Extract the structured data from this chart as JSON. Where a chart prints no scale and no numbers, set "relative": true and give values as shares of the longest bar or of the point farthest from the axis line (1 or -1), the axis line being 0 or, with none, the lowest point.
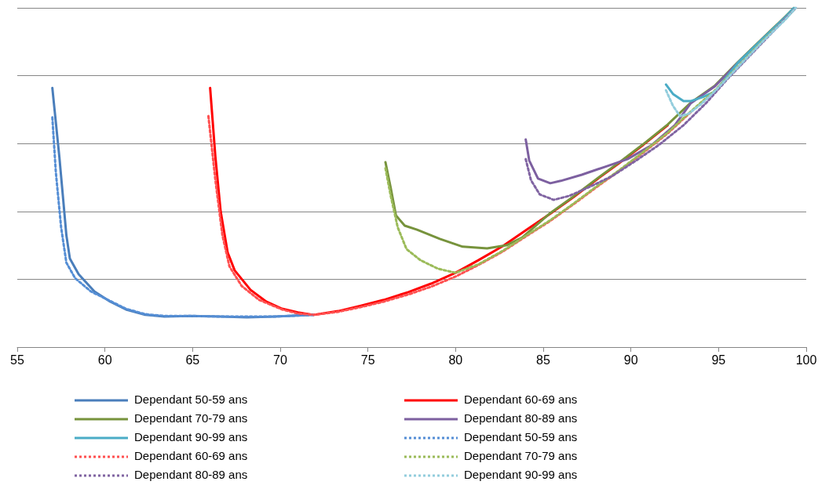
{
  "chart_data": {
    "type": "line",
    "relative": true,
    "xlim": [
      55,
      100
    ],
    "xticks": [
      55,
      60,
      65,
      70,
      75,
      80,
      85,
      90,
      95,
      100
    ],
    "grid": "y",
    "legend": "bottom",
    "marker": "none",
    "series": [
      {
        "name": "Dependant 50-59 ans",
        "color": "#4a7ebb",
        "line_style": "solid",
        "x": [
          57.0,
          57.4,
          57.6,
          57.8,
          58.0,
          58.5,
          59.4,
          60.3,
          61.2,
          62.3,
          63.4,
          64.8,
          66.6,
          68.1,
          69.7,
          71.9
        ],
        "values": [
          0.764,
          0.561,
          0.446,
          0.33,
          0.261,
          0.215,
          0.164,
          0.134,
          0.111,
          0.095,
          0.09,
          0.092,
          0.09,
          0.088,
          0.09,
          0.095
        ]
      },
      {
        "name": "Dependant 60-69 ans",
        "color": "#ff0000",
        "line_style": "solid",
        "x": [
          66.0,
          66.3,
          66.6,
          67.0,
          67.4,
          68.3,
          69.2,
          70.1,
          71.0,
          71.9,
          73.3,
          74.6,
          75.9,
          77.3,
          78.6,
          80.0,
          81.3,
          82.7,
          84.0,
          85.4,
          86.7,
          88.0,
          89.4,
          90.7,
          92.1
        ],
        "values": [
          0.764,
          0.561,
          0.4,
          0.279,
          0.226,
          0.169,
          0.134,
          0.113,
          0.102,
          0.095,
          0.106,
          0.122,
          0.139,
          0.162,
          0.187,
          0.219,
          0.256,
          0.298,
          0.344,
          0.393,
          0.441,
          0.492,
          0.545,
          0.596,
          0.654
        ]
      },
      {
        "name": "Dependant 70-79 ans",
        "color": "#77933c",
        "line_style": "solid",
        "x": [
          76.0,
          76.3,
          76.6,
          77.1,
          77.8,
          79.1,
          80.4,
          81.8,
          82.9,
          83.8,
          85.4,
          86.7,
          88.0,
          89.4,
          90.7,
          92.1,
          93.4,
          94.8,
          96.1,
          97.5,
          98.8,
          99.3
        ],
        "values": [
          0.545,
          0.469,
          0.388,
          0.358,
          0.346,
          0.319,
          0.296,
          0.291,
          0.3,
          0.323,
          0.395,
          0.443,
          0.494,
          0.547,
          0.598,
          0.656,
          0.72,
          0.771,
          0.84,
          0.91,
          0.974,
          1.0
        ]
      },
      {
        "name": "Dependant 80-89 ans",
        "color": "#7d60a0",
        "line_style": "solid",
        "x": [
          84.0,
          84.2,
          84.7,
          85.4,
          86.0,
          87.2,
          88.5,
          89.8,
          91.2,
          92.5,
          93.4,
          94.8,
          96.1,
          97.5,
          98.8,
          99.4
        ],
        "values": [
          0.612,
          0.55,
          0.497,
          0.483,
          0.49,
          0.508,
          0.531,
          0.554,
          0.596,
          0.654,
          0.718,
          0.769,
          0.838,
          0.908,
          0.972,
          1.0
        ]
      },
      {
        "name": "Dependant 90-99 ans",
        "color": "#4bacc6",
        "line_style": "solid",
        "x": [
          92.0,
          92.4,
          93.0,
          93.4,
          94.1,
          94.8,
          96.1,
          97.5,
          98.8,
          99.3
        ],
        "values": [
          0.774,
          0.746,
          0.725,
          0.725,
          0.737,
          0.753,
          0.838,
          0.908,
          0.972,
          1.0
        ]
      },
      {
        "name": "Dependant 50-59 ans",
        "color": "#558ed5",
        "line_style": "dotted",
        "x": [
          57.0,
          57.2,
          57.5,
          57.8,
          58.3,
          59.2,
          60.3,
          61.2,
          62.3,
          63.4,
          64.8,
          66.6,
          68.1,
          69.7,
          71.9
        ],
        "values": [
          0.677,
          0.515,
          0.353,
          0.249,
          0.203,
          0.164,
          0.136,
          0.113,
          0.097,
          0.092,
          0.092,
          0.09,
          0.09,
          0.09,
          0.095
        ]
      },
      {
        "name": "Dependant 60-69 ans",
        "color": "#ff5050",
        "line_style": "dotted",
        "x": [
          65.9,
          66.3,
          66.7,
          67.1,
          67.8,
          68.8,
          70.1,
          71.0,
          71.9,
          73.3,
          74.6,
          75.9,
          77.3,
          78.6,
          80.0,
          81.3,
          82.7,
          84.0,
          85.4,
          86.7,
          88.0,
          89.4,
          90.7,
          92.1,
          93.4
        ],
        "values": [
          0.681,
          0.492,
          0.33,
          0.238,
          0.18,
          0.139,
          0.111,
          0.099,
          0.095,
          0.104,
          0.118,
          0.134,
          0.155,
          0.178,
          0.208,
          0.242,
          0.282,
          0.326,
          0.372,
          0.42,
          0.47,
          0.522,
          0.573,
          0.63,
          0.692
        ]
      },
      {
        "name": "Dependant 70-79 ans",
        "color": "#9bbb59",
        "line_style": "dotted",
        "x": [
          76.0,
          76.3,
          76.7,
          77.2,
          78.0,
          79.0,
          80.0,
          81.3,
          82.7,
          84.0,
          85.4,
          86.7,
          88.0,
          89.4,
          90.7,
          92.1,
          93.4,
          94.8,
          96.1,
          97.5,
          98.8,
          99.4
        ],
        "values": [
          0.527,
          0.446,
          0.353,
          0.289,
          0.256,
          0.231,
          0.219,
          0.244,
          0.284,
          0.328,
          0.374,
          0.422,
          0.472,
          0.524,
          0.575,
          0.632,
          0.694,
          0.757,
          0.827,
          0.902,
          0.967,
          1.0
        ]
      },
      {
        "name": "Dependant 80-89 ans",
        "color": "#8064a2",
        "line_style": "dotted",
        "x": [
          84.0,
          84.3,
          84.8,
          85.6,
          86.5,
          87.5,
          88.9,
          90.3,
          91.6,
          93.0,
          94.3,
          95.5,
          96.8,
          98.1,
          99.4
        ],
        "values": [
          0.554,
          0.492,
          0.45,
          0.434,
          0.446,
          0.469,
          0.503,
          0.55,
          0.596,
          0.654,
          0.72,
          0.79,
          0.86,
          0.93,
          1.0
        ]
      },
      {
        "name": "Dependant 90-99 ans",
        "color": "#93cddd",
        "line_style": "dotted",
        "x": [
          92.0,
          92.4,
          92.8,
          93.3,
          94.0,
          94.8,
          96.1,
          97.5,
          98.8,
          99.4
        ],
        "values": [
          0.757,
          0.711,
          0.681,
          0.688,
          0.716,
          0.755,
          0.825,
          0.9,
          0.965,
          1.0
        ]
      }
    ]
  }
}
